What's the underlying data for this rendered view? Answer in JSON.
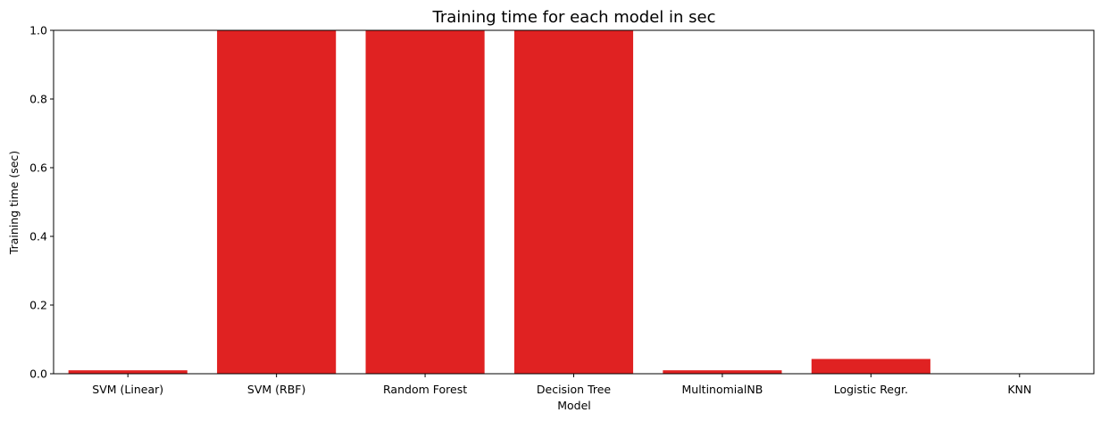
{
  "chart_data": {
    "type": "bar",
    "title": "Training time for each model in sec",
    "xlabel": "Model",
    "ylabel": "Training time (sec)",
    "categories": [
      "SVM (Linear)",
      "SVM (RBF)",
      "Random Forest",
      "Decision Tree",
      "MultinomialNB",
      "Logistic Regr.",
      "KNN"
    ],
    "values": [
      0.01,
      1.0,
      1.0,
      1.0,
      0.01,
      0.043,
      0.0
    ],
    "ylim": [
      0,
      1.0
    ],
    "yticks": [
      "0.0",
      "0.2",
      "0.4",
      "0.6",
      "0.8",
      "1.0"
    ],
    "grid": false,
    "bar_color": "#e02222"
  }
}
